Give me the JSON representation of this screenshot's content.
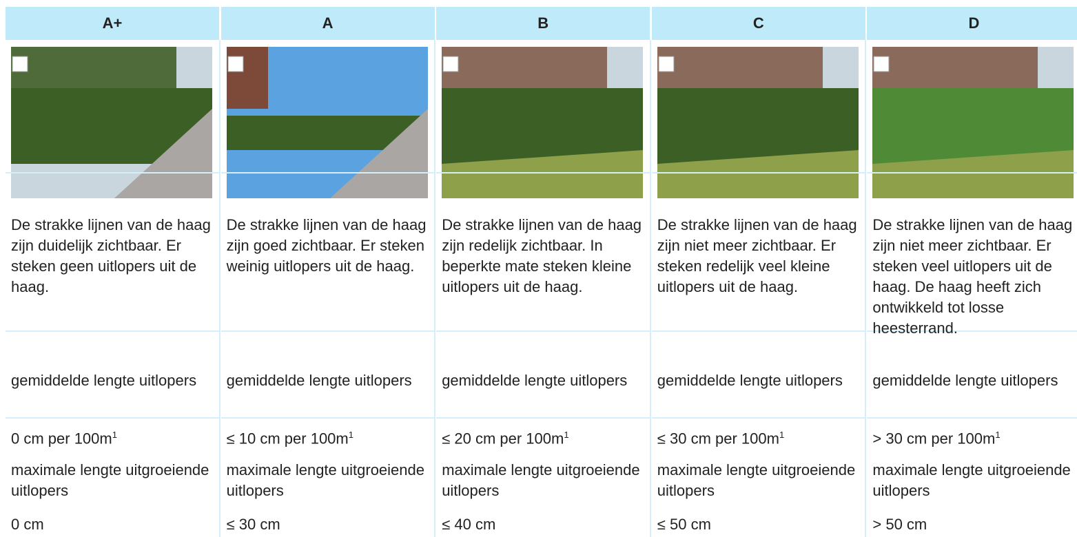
{
  "table": {
    "columns": [
      {
        "grade": "A+",
        "description": "De strakke lijnen van de haag zijn duidelijk zichtbaar. Er steken geen uitlopers uit de haag.",
        "avg_label": "gemiddelde lengte uitlopers",
        "avg_value": {
          "text": "0 cm per 100m",
          "sup": "1"
        },
        "max_label": "maximale lengte uitgroeiende uitlopers",
        "max_value": "0 cm"
      },
      {
        "grade": "A",
        "description": "De strakke lijnen van de haag zijn goed zichtbaar. Er steken weinig uitlopers uit de haag.",
        "avg_label": "gemiddelde lengte uitlopers",
        "avg_value": {
          "text": "≤ 10 cm per 100m",
          "sup": "1"
        },
        "max_label": "maximale lengte uitgroeiende uitlopers",
        "max_value": "≤ 30 cm"
      },
      {
        "grade": "B",
        "description": "De strakke lijnen van de haag zijn redelijk zichtbaar. In beperkte mate steken kleine uitlopers uit de haag.",
        "avg_label": "gemiddelde lengte uitlopers",
        "avg_value": {
          "text": "≤ 20 cm per 100m",
          "sup": "1"
        },
        "max_label": "maximale lengte uitgroeiende uitlopers",
        "max_value": "≤ 40 cm"
      },
      {
        "grade": "C",
        "description": "De strakke lijnen van de haag zijn niet meer zichtbaar. Er steken redelijk veel kleine uitlopers uit de haag.",
        "avg_label": "gemiddelde lengte uitlopers",
        "avg_value": {
          "text": "≤ 30 cm per 100m",
          "sup": "1"
        },
        "max_label": "maximale lengte uitgroeiende uitlopers",
        "max_value": "≤ 50 cm"
      },
      {
        "grade": "D",
        "description": "De strakke lijnen van de haag zijn niet meer zichtbaar. Er steken veel uitlopers uit de haag. De haag heeft zich ontwikkeld tot losse heesterrand.",
        "avg_label": "gemiddelde lengte uitlopers",
        "avg_value": {
          "text": "> 30 cm per 100m",
          "sup": "1"
        },
        "max_label": "maximale lengte uitgroeiende uitlopers",
        "max_value": "> 50 cm"
      }
    ]
  }
}
